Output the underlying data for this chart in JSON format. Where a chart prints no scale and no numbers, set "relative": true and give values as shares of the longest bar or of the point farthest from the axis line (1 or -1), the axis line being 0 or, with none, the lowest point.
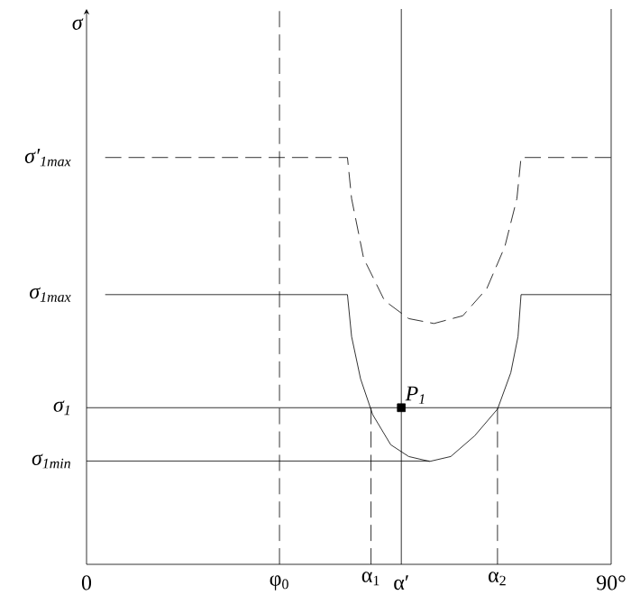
{
  "chart_data": {
    "type": "line",
    "relative": true,
    "xlim": [
      0,
      90
    ],
    "xticks": [
      0,
      {
        "value": 90,
        "label": "90°"
      }
    ],
    "series": [
      {
        "name": "σ′$_{1max}$",
        "line_style": "dashed",
        "color": "#000000",
        "x": [
          3.2,
          44.76,
          45.47,
          47.54,
          51.13,
          55.27,
          59.6,
          64.55,
          68.67,
          71.76,
          73.83,
          74.54,
          90
        ],
        "values": [
          1.0,
          1.0,
          0.899,
          0.752,
          0.648,
          0.604,
          0.592,
          0.611,
          0.678,
          0.781,
          0.899,
          1.0,
          1.0
        ]
      },
      {
        "name": "σ$_{1max}$",
        "line_style": "solid",
        "color": "#000000",
        "x": [
          3.2,
          44.76,
          45.47,
          47.01,
          49.09,
          52.18,
          55.27,
          58.86,
          62.48,
          66.59,
          70.52,
          72.78,
          74.02,
          74.54,
          90
        ],
        "values": [
          0.663,
          0.663,
          0.56,
          0.456,
          0.368,
          0.294,
          0.265,
          0.253,
          0.265,
          0.316,
          0.382,
          0.471,
          0.56,
          0.663,
          0.663
        ]
      },
      {
        "name": "σ$_{1}$",
        "line_style": "solid",
        "color": "#000000",
        "x": [
          0,
          90
        ],
        "values": [
          0.385,
          0.385
        ]
      },
      {
        "name": "σ$_{1min}$",
        "line_style": "solid",
        "color": "#000000",
        "x": [
          0,
          58.86
        ],
        "values": [
          0.254,
          0.254
        ]
      },
      {
        "line_style": "dashed",
        "color": "#000000",
        "x": [
          48.8,
          48.8
        ],
        "values": [
          0,
          0.385
        ]
      },
      {
        "line_style": "dashed",
        "color": "#000000",
        "x": [
          70.5,
          70.5
        ],
        "values": [
          0,
          0.385
        ]
      },
      {
        "type": "scatter",
        "marker": "square",
        "color": "#000000",
        "x": [
          54.0
        ],
        "values": [
          0.385
        ]
      }
    ],
    "ref_lines": [
      {
        "axis": "x",
        "value": 33.1,
        "label": "φ$_{0}$",
        "line_style": "dashed",
        "color": "#000000"
      },
      {
        "axis": "x",
        "value": 54.0,
        "label": "α′",
        "line_style": "solid",
        "color": "#000000"
      },
      {
        "axis": "x",
        "value": 90,
        "line_style": "solid",
        "color": "#000000"
      }
    ],
    "annotations": [
      "σ",
      {
        "text": "P$_{1}$",
        "x": 54.0,
        "y": 0.385
      },
      {
        "text": "α$_{1}$",
        "x": 48.8,
        "y": 0
      },
      {
        "text": "α$_{2}$",
        "x": 70.5,
        "y": 0
      }
    ]
  }
}
